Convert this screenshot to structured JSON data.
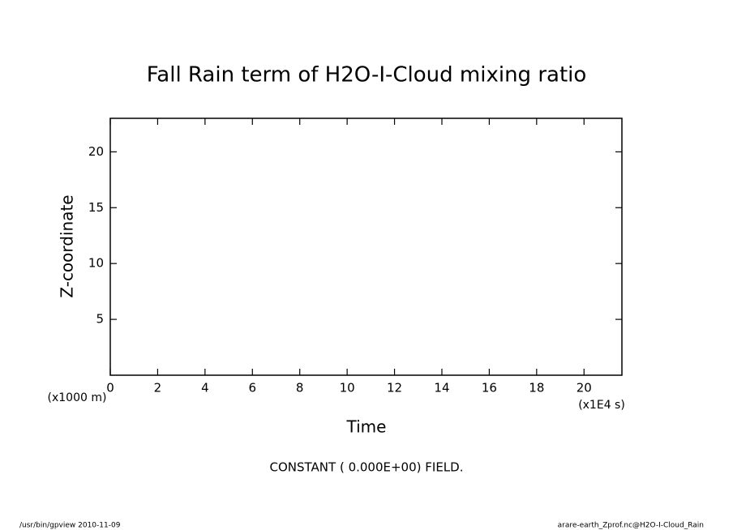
{
  "chart_data": {
    "type": "contour",
    "title": "Fall Rain term of H2O-I-Cloud mixing ratio",
    "x_label": "Time",
    "y_label": "Z-coordinate",
    "x_unit": "(x1E4 s)",
    "y_unit": "(x1000 m)",
    "note": "CONSTANT ( 0.000E+00) FIELD.",
    "xlim": [
      0,
      21.6
    ],
    "xticks": [
      0,
      2,
      4,
      6,
      8,
      10,
      12,
      14,
      16,
      18,
      20
    ],
    "ylim": [
      0,
      23
    ],
    "yticks": [
      5,
      10,
      15,
      20
    ],
    "color": "#000000"
  },
  "footer": {
    "left": "/usr/bin/gpview  2010-11-09",
    "right": "arare-earth_Zprof.nc@H2O-I-Cloud_Rain"
  }
}
